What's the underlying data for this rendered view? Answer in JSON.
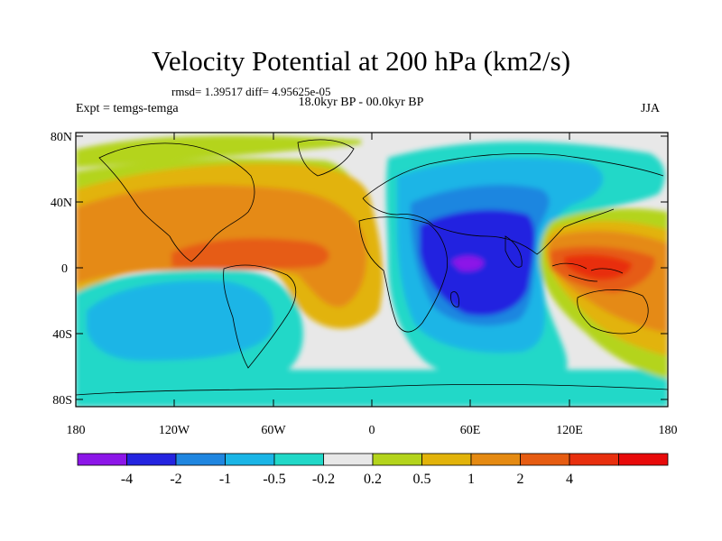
{
  "title": "Velocity Potential at 200 hPa (km2/s)",
  "stats": "rmsd= 1.39517 diff= 4.95625e-05",
  "period": "18.0kyr BP - 00.0kyr BP",
  "experiment": "Expt = temgs-temga",
  "season": "JJA",
  "map": {
    "projection": "cylindrical-equidistant",
    "continent_outlines": "black",
    "lat_ticks": [
      "80N",
      "40N",
      "0",
      "40S",
      "80S"
    ],
    "lon_ticks": [
      "180",
      "120W",
      "60W",
      "0",
      "60E",
      "120E",
      "180"
    ]
  },
  "colorbar": {
    "colors": [
      "#8c16e8",
      "#2424e0",
      "#1f86e0",
      "#1ab5e6",
      "#21d8c8",
      "#e8e8e8",
      "#b4d41c",
      "#e2b30a",
      "#e58a12",
      "#e65c12",
      "#e82f0e",
      "#e80a0a"
    ],
    "labels": [
      "-4",
      "-2",
      "-1",
      "-0.5",
      "-0.2",
      "0.2",
      "0.5",
      "1",
      "2",
      "4"
    ]
  }
}
